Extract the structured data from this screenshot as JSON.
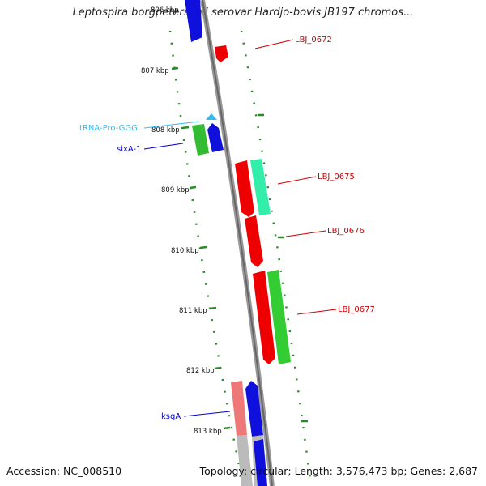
{
  "title": "Leptospira borgpetersenii serovar Hardjo-bovis JB197 chromos...",
  "footer": {
    "accession": "Accession: NC_008510",
    "summary": "Topology: circular; Length: 3,576,473 bp; Genes: 2,687"
  },
  "ticks": [
    "806 kbp",
    "807 kbp",
    "808 kbp",
    "809 kbp",
    "810 kbp",
    "811 kbp",
    "812 kbp",
    "813 kbp"
  ],
  "genes": [
    {
      "id": "LBJ_0672",
      "label": "LBJ_0672",
      "color": "#cc0000"
    },
    {
      "id": "tRNA-Pro-GGG",
      "label": "tRNA-Pro-GGG",
      "color": "#33bbee"
    },
    {
      "id": "sixA-1",
      "label": "sixA-1",
      "color": "#0000cc"
    },
    {
      "id": "LBJ_0675",
      "label": "LBJ_0675",
      "color": "#cc0000"
    },
    {
      "id": "LBJ_0676",
      "label": "LBJ_0676",
      "color": "#cc0000"
    },
    {
      "id": "LBJ_0677",
      "label": "LBJ_0677",
      "color": "#cc0000"
    },
    {
      "id": "ksgA",
      "label": "ksgA",
      "color": "#0000cc"
    }
  ],
  "colors": {
    "backbone": "#888888",
    "gc_skew": "#2a8a2a",
    "cds_forward": "#ee0000",
    "cds_reverse": "#0000ee",
    "cds_green": "#33cc33",
    "cds_cyan": "#33eeaa",
    "cds_pink": "#ee7777",
    "cds_gray": "#bbbbbb",
    "trna": "#33bbee"
  }
}
